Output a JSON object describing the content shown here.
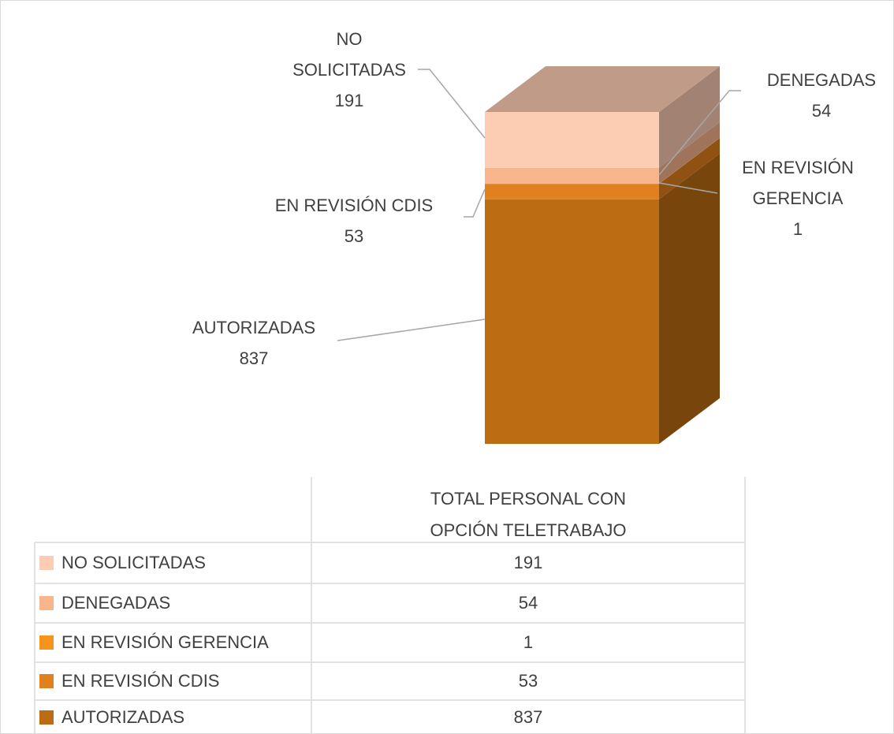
{
  "chart_data": {
    "type": "bar3d-stacked",
    "categories": [
      "TOTAL PERSONAL CON OPCIÓN TELETRABAJO"
    ],
    "series": [
      {
        "name": "NO SOLICITADAS",
        "color": "#fdcdb3",
        "values": [
          191
        ]
      },
      {
        "name": "DENEGADAS",
        "color": "#f9b58c",
        "values": [
          54
        ]
      },
      {
        "name": "EN REVISIÓN GERENCIA",
        "color": "#f7941d",
        "values": [
          1
        ]
      },
      {
        "name": "EN REVISIÓN CDIS",
        "color": "#e0801e",
        "values": [
          53
        ]
      },
      {
        "name": "AUTORIZADAS",
        "color": "#bc6d14",
        "values": [
          837
        ]
      }
    ]
  }
}
